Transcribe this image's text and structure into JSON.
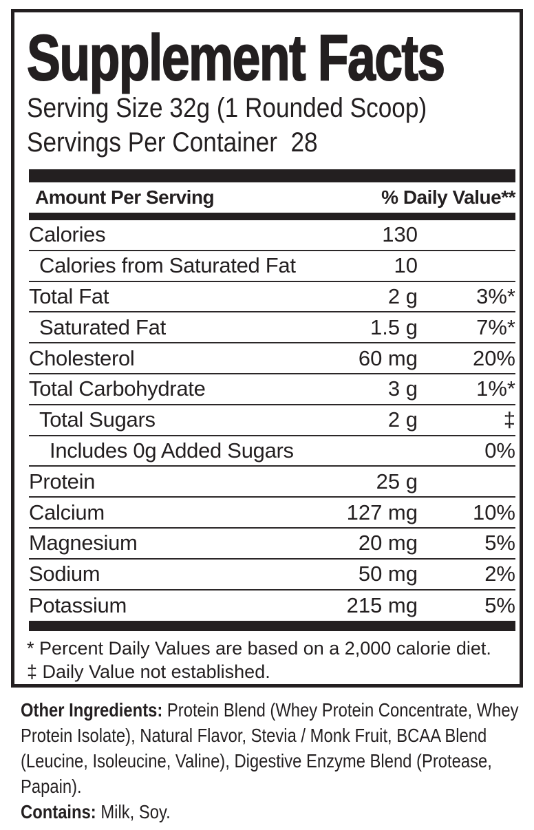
{
  "panel": {
    "title": "Supplement Facts",
    "serving_size": "Serving Size 32g (1 Rounded Scoop)",
    "servings_per_container": "Servings Per Container  28",
    "header": {
      "amount_label": "Amount Per Serving",
      "daily_value_label": "% Daily Value**"
    },
    "rows": [
      {
        "label": "Calories",
        "indent": 0,
        "amount": "130",
        "dv": ""
      },
      {
        "label": "Calories from Saturated Fat",
        "indent": 1,
        "amount": "10",
        "dv": ""
      },
      {
        "label": "Total Fat",
        "indent": 0,
        "amount": "2 g",
        "dv": "3%*"
      },
      {
        "label": "Saturated Fat",
        "indent": 1,
        "amount": "1.5 g",
        "dv": "7%*"
      },
      {
        "label": "Cholesterol",
        "indent": 0,
        "amount": "60 mg",
        "dv": "20%"
      },
      {
        "label": "Total Carbohydrate",
        "indent": 0,
        "amount": "3 g",
        "dv": "1%*"
      },
      {
        "label": "Total Sugars",
        "indent": 1,
        "amount": "2 g",
        "dv": "‡"
      },
      {
        "label": "Includes 0g Added Sugars",
        "indent": 2,
        "amount": "",
        "dv": "0%"
      },
      {
        "label": "Protein",
        "indent": 0,
        "amount": "25 g",
        "dv": ""
      },
      {
        "label": "Calcium",
        "indent": 0,
        "amount": "127 mg",
        "dv": "10%"
      },
      {
        "label": "Magnesium",
        "indent": 0,
        "amount": "20 mg",
        "dv": "5%"
      },
      {
        "label": "Sodium",
        "indent": 0,
        "amount": "50 mg",
        "dv": "2%"
      },
      {
        "label": "Potassium",
        "indent": 0,
        "amount": "215 mg",
        "dv": "5%"
      }
    ],
    "footnotes": [
      "* Percent Daily Values are based on a 2,000 calorie diet.",
      "‡ Daily Value not established."
    ]
  },
  "ingredients": {
    "other_label": "Other Ingredients:",
    "other_text": " Protein Blend (Whey Protein Concentrate, Whey Protein Isolate), Natural Flavor, Stevia / Monk Fruit, BCAA Blend (Leucine, Isoleucine, Valine), Digestive Enzyme Blend (Protease, Papain).",
    "contains_label": "Contains:",
    "contains_text": " Milk, Soy."
  },
  "colors": {
    "ink": "#231f20"
  }
}
